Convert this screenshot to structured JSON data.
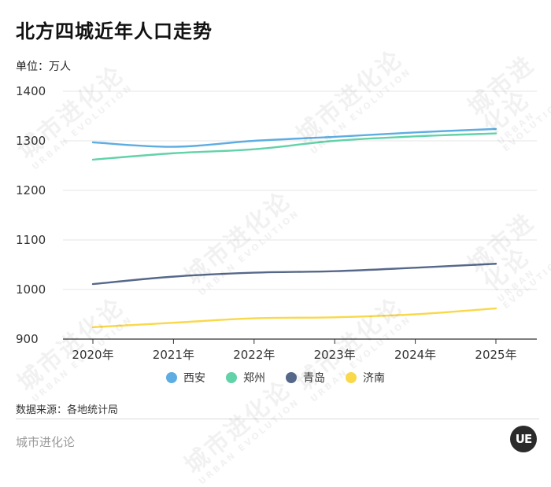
{
  "header": {
    "title": "北方四城近年人口走势",
    "unit": "单位：万人"
  },
  "chart_data": {
    "type": "line",
    "title": "北方四城近年人口走势",
    "ylabel": "单位：万人",
    "xlabel": "",
    "categories": [
      "2020年",
      "2021年",
      "2022年",
      "2023年",
      "2024年",
      "2025年"
    ],
    "ylim": [
      900,
      1400
    ],
    "yticks": [
      900,
      1000,
      1100,
      1200,
      1300,
      1400
    ],
    "grid": "horizontal",
    "legend_position": "bottom",
    "series": [
      {
        "name": "西安",
        "color": "#5dade2",
        "values": [
          1297,
          1288,
          1300,
          1308,
          1317,
          1324
        ]
      },
      {
        "name": "郑州",
        "color": "#62d2a8",
        "values": [
          1262,
          1275,
          1283,
          1300,
          1309,
          1315
        ]
      },
      {
        "name": "青岛",
        "color": "#56688a",
        "values": [
          1011,
          1026,
          1034,
          1037,
          1044,
          1052
        ]
      },
      {
        "name": "济南",
        "color": "#f9d84a",
        "values": [
          924,
          933,
          942,
          944,
          950,
          962
        ]
      }
    ]
  },
  "footer": {
    "source": "数据来源：各地统计局",
    "brand": "城市进化论",
    "logo_text": "UE"
  },
  "watermark": {
    "main": "城市进化论",
    "sub": "URBAN EVOLUTION"
  }
}
